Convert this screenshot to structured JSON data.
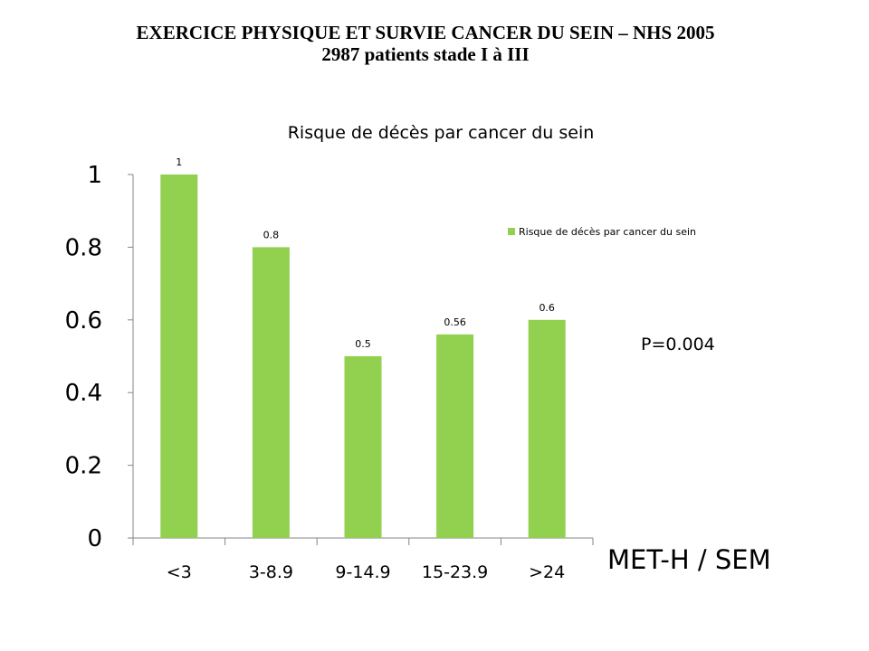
{
  "slide": {
    "title_line1": "EXERCICE PHYSIQUE ET SURVIE CANCER DU SEIN – NHS 2005",
    "title_line2": "2987 patients stade I à III"
  },
  "chart_data": {
    "type": "bar",
    "title": "Risque de décès par cancer du sein",
    "categories": [
      "<3",
      "3-8.9",
      "9-14.9",
      "15-23.9",
      ">24"
    ],
    "series": [
      {
        "name": "Risque de décès par cancer du sein",
        "values": [
          1,
          0.8,
          0.5,
          0.56,
          0.6
        ],
        "color": "#92d050"
      }
    ],
    "data_labels": [
      "1",
      "0.8",
      "0.5",
      "0.56",
      "0.6"
    ],
    "ylim": [
      0,
      1
    ],
    "yticks": [
      0,
      0.2,
      0.4,
      0.6,
      0.8,
      1
    ],
    "ytick_labels": [
      "0",
      "0.2",
      "0.4",
      "0.6",
      "0.8",
      "1"
    ],
    "xlabel": "MET-H / SEM",
    "ylabel": "",
    "annotation": "P=0.004",
    "legend_position": "right",
    "grid": false
  }
}
